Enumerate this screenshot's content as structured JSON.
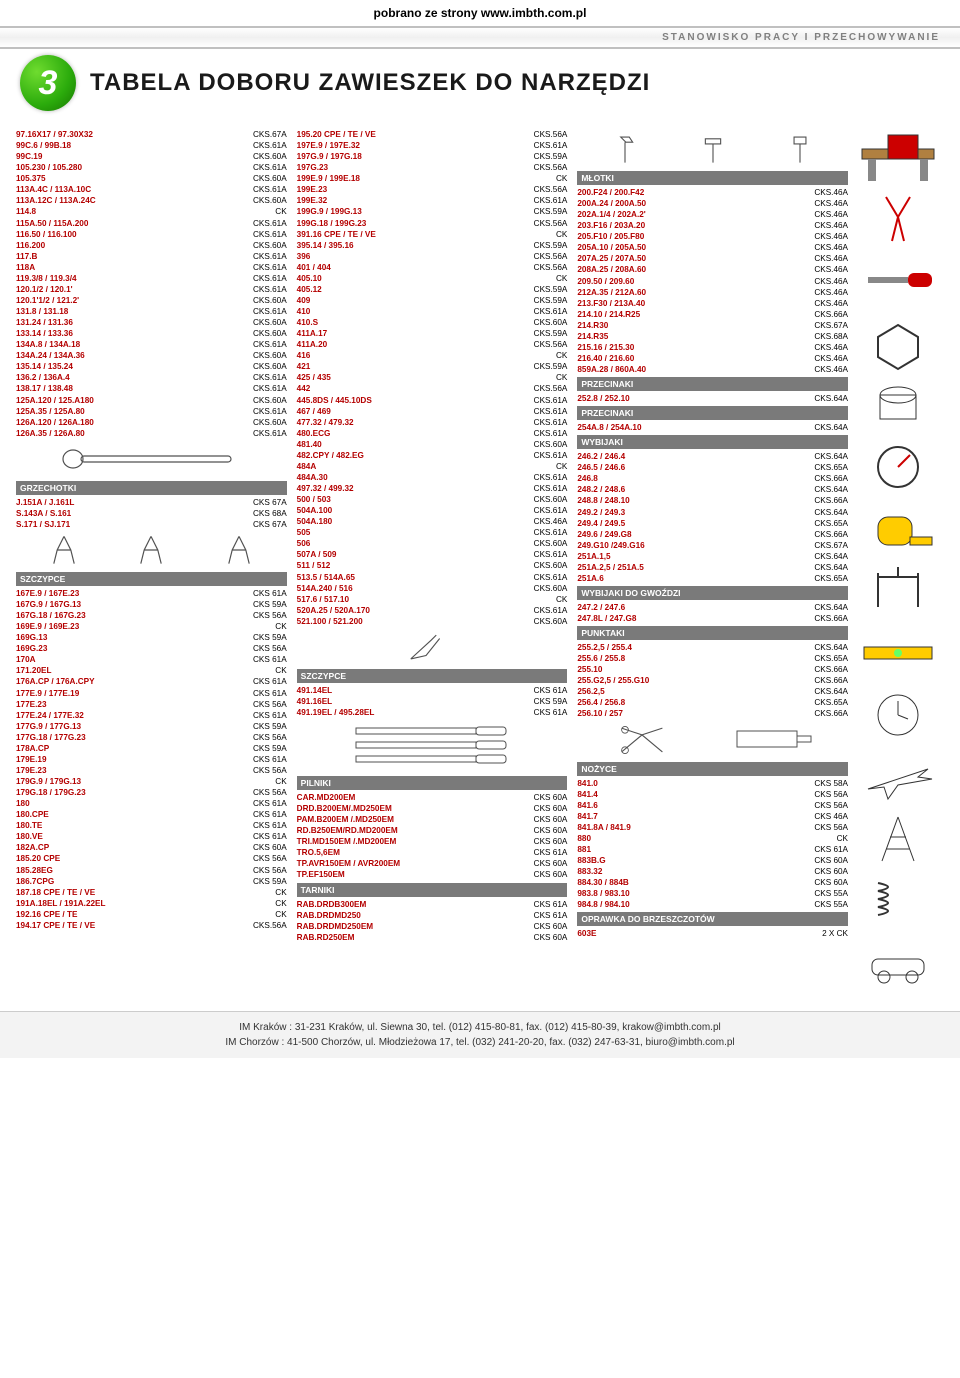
{
  "top_banner": "pobrano ze strony www.imbth.com.pl",
  "header_badge": "STANOWISKO PRACY I PRZECHOWYWANIE",
  "big_number": "3",
  "title": "TABELA DOBORU ZAWIESZEK DO NARZĘDZI",
  "col1": {
    "block1": [
      [
        "97.16X17 / 97.30X32",
        "CKS.67A"
      ],
      [
        "99C.6 / 99B.18",
        "CKS.61A"
      ],
      [
        "99C.19",
        "CKS.60A"
      ],
      [
        "105.230 / 105.280",
        "CKS.61A"
      ],
      [
        "105.375",
        "CKS.60A"
      ],
      [
        "113A.4C / 113A.10C",
        "CKS.61A"
      ],
      [
        "113A.12C / 113A.24C",
        "CKS.60A"
      ],
      [
        "114.8",
        "CK"
      ],
      [
        "115A.50 / 115A.200",
        "CKS.61A"
      ],
      [
        "116.50 / 116.100",
        "CKS.61A"
      ],
      [
        "116.200",
        "CKS.60A"
      ],
      [
        "117.B",
        "CKS.61A"
      ],
      [
        "118A",
        "CKS.61A"
      ],
      [
        "119.3/8 / 119.3/4",
        "CKS.61A"
      ],
      [
        "120.1/2 / 120.1'",
        "CKS.61A"
      ],
      [
        "120.1'1/2 / 121.2'",
        "CKS.60A"
      ],
      [
        "131.8 / 131.18",
        "CKS.61A"
      ],
      [
        "131.24 / 131.36",
        "CKS.60A"
      ],
      [
        "133.14 / 133.36",
        "CKS.60A"
      ],
      [
        "134A.8 / 134A.18",
        "CKS.61A"
      ],
      [
        "134A.24 / 134A.36",
        "CKS.60A"
      ],
      [
        "135.14 / 135.24",
        "CKS.60A"
      ],
      [
        "136.2 / 136A.4",
        "CKS.61A"
      ],
      [
        "138.17 / 138.48",
        "CKS.61A"
      ],
      [
        "125A.120 / 125.A180",
        "CKS.60A"
      ],
      [
        "125A.35 / 125A.80",
        "CKS.61A"
      ],
      [
        "126A.120 / 126A.180",
        "CKS.60A"
      ],
      [
        "126A.35 / 126A.80",
        "CKS.61A"
      ]
    ],
    "sec1": "GRZECHOTKI",
    "block2": [
      [
        "J.151A / J.161L",
        "CKS 67A"
      ],
      [
        "S.143A / S.161",
        "CKS 68A"
      ],
      [
        "S.171 / SJ.171",
        "CKS 67A"
      ]
    ],
    "sec2": "SZCZYPCE",
    "block3": [
      [
        "167E.9 / 167E.23",
        "CKS 61A"
      ],
      [
        "167G.9 / 167G.13",
        "CKS 59A"
      ],
      [
        "167G.18 / 167G.23",
        "CKS 56A"
      ],
      [
        "169E.9 / 169E.23",
        "CK"
      ],
      [
        "169G.13",
        "CKS 59A"
      ],
      [
        "169G.23",
        "CKS 56A"
      ],
      [
        "170A",
        "CKS 61A"
      ],
      [
        "171.20EL",
        "CK"
      ],
      [
        "176A.CP / 176A.CPY",
        "CKS 61A"
      ],
      [
        "177E.9 / 177E.19",
        "CKS 61A"
      ],
      [
        "177E.23",
        "CKS 56A"
      ],
      [
        "177E.24 / 177E.32",
        "CKS 61A"
      ],
      [
        "177G.9 / 177G.13",
        "CKS 59A"
      ],
      [
        "177G.18 / 177G.23",
        "CKS 56A"
      ],
      [
        "178A.CP",
        "CKS 59A"
      ],
      [
        "179E.19",
        "CKS 61A"
      ],
      [
        "179E.23",
        "CKS 56A"
      ],
      [
        "179G.9 / 179G.13",
        "CK"
      ],
      [
        "179G.18 / 179G.23",
        "CKS 56A"
      ],
      [
        "180",
        "CKS 61A"
      ],
      [
        "180.CPE",
        "CKS 61A"
      ],
      [
        "180.TE",
        "CKS 61A"
      ],
      [
        "180.VE",
        "CKS 61A"
      ],
      [
        "182A.CP",
        "CKS 60A"
      ],
      [
        "185.20 CPE",
        "CKS 56A"
      ],
      [
        "185.28EG",
        "CKS 56A"
      ],
      [
        "186.7CPG",
        "CKS 59A"
      ],
      [
        "187.18 CPE / TE / VE",
        "CK"
      ],
      [
        "191A.18EL / 191A.22EL",
        "CK"
      ],
      [
        "192.16 CPE / TE",
        "CK"
      ],
      [
        "194.17 CPE / TE / VE",
        "CKS.56A"
      ]
    ]
  },
  "col2": {
    "block1": [
      [
        "195.20 CPE / TE / VE",
        "CKS.56A"
      ],
      [
        "197E.9 / 197E.32",
        "CKS.61A"
      ],
      [
        "197G.9 / 197G.18",
        "CKS.59A"
      ],
      [
        "197G.23",
        "CKS.56A"
      ],
      [
        "199E.9 / 199E.18",
        "CK"
      ],
      [
        "199E.23",
        "CKS.56A"
      ],
      [
        "199E.32",
        "CKS.61A"
      ],
      [
        "199G.9 / 199G.13",
        "CKS.59A"
      ],
      [
        "199G.18 / 199G.23",
        "CKS.56A"
      ],
      [
        "391.16 CPE / TE / VE",
        "CK"
      ],
      [
        "395.14 / 395.16",
        "CKS.59A"
      ],
      [
        "396",
        "CKS.56A"
      ],
      [
        "401 / 404",
        "CKS.56A"
      ],
      [
        "405.10",
        "CK"
      ],
      [
        "405.12",
        "CKS.59A"
      ],
      [
        "409",
        "CKS.59A"
      ],
      [
        "410",
        "CKS.61A"
      ],
      [
        "410.S",
        "CKS.60A"
      ],
      [
        "411A.17",
        "CKS.59A"
      ],
      [
        "411A.20",
        "CKS.56A"
      ],
      [
        "416",
        "CK"
      ],
      [
        "421",
        "CKS.59A"
      ],
      [
        "425 / 435",
        "CK"
      ],
      [
        "442",
        "CKS.56A"
      ],
      [
        "445.8DS / 445.10DS",
        "CKS.61A"
      ],
      [
        "467 / 469",
        "CKS.61A"
      ],
      [
        "477.32 / 479.32",
        "CKS.61A"
      ],
      [
        "480.ECG",
        "CKS.61A"
      ],
      [
        "481.40",
        "CKS.60A"
      ],
      [
        "482.CPY / 482.EG",
        "CKS.61A"
      ],
      [
        "484A",
        "CK"
      ],
      [
        "484A.30",
        "CKS.61A"
      ],
      [
        "497.32 / 499.32",
        "CKS.61A"
      ],
      [
        "500 / 503",
        "CKS.60A"
      ],
      [
        "504A.100",
        "CKS.61A"
      ],
      [
        "504A.180",
        "CKS.46A"
      ],
      [
        "505",
        "CKS.61A"
      ],
      [
        "506",
        "CKS.60A"
      ],
      [
        "507A / 509",
        "CKS.61A"
      ],
      [
        "511 / 512",
        "CKS.60A"
      ],
      [
        "513.5 / 514A.65",
        "CKS.61A"
      ],
      [
        "514A.240 / 516",
        "CKS.60A"
      ],
      [
        "517.6 / 517.10",
        "CK"
      ],
      [
        "520A.25 / 520A.170",
        "CKS.61A"
      ],
      [
        "521.100 / 521.200",
        "CKS.60A"
      ]
    ],
    "sec1": "SZCZYPCE",
    "block2": [
      [
        "491.14EL",
        "CKS 61A"
      ],
      [
        "491.16EL",
        "CKS 59A"
      ],
      [
        "491.19EL / 495.28EL",
        "CKS 61A"
      ]
    ],
    "sec2": "PILNIKI",
    "block3": [
      [
        "CAR.MD200EM",
        "CKS 60A"
      ],
      [
        "DRD.B200EM/.MD250EM",
        "CKS 60A"
      ],
      [
        "PAM.B200EM /.MD250EM",
        "CKS 60A"
      ],
      [
        "RD.B250EM/RD.MD200EM",
        "CKS 60A"
      ],
      [
        "TRI.MD150EM /.MD200EM",
        "CKS 60A"
      ],
      [
        "TRO.5,6EM",
        "CKS 61A"
      ],
      [
        "TP.AVR150EM / AVR200EM",
        "CKS 60A"
      ],
      [
        "TP.EF150EM",
        "CKS 60A"
      ]
    ],
    "sec3": "TARNIKI",
    "block4": [
      [
        "RAB.DRDB300EM",
        "CKS 61A"
      ],
      [
        "RAB.DRDMD250",
        "CKS 61A"
      ],
      [
        "RAB.DRDMD250EM",
        "CKS 60A"
      ],
      [
        "RAB.RD250EM",
        "CKS 60A"
      ]
    ]
  },
  "col3": {
    "sec1": "MŁOTKI",
    "block1": [
      [
        "200.F24 / 200.F42",
        "CKS.46A"
      ],
      [
        "200A.24 / 200A.50",
        "CKS.46A"
      ],
      [
        "202A.1/4 / 202A.2'",
        "CKS.46A"
      ],
      [
        "203.F16 / 203A.20",
        "CKS.46A"
      ],
      [
        "205.F10 / 205.F80",
        "CKS.46A"
      ],
      [
        "205A.10 / 205A.50",
        "CKS.46A"
      ],
      [
        "207A.25 / 207A.50",
        "CKS.46A"
      ],
      [
        "208A.25 / 208A.60",
        "CKS.46A"
      ],
      [
        "209.50 / 209.60",
        "CKS.46A"
      ],
      [
        "212A.35 / 212A.60",
        "CKS.46A"
      ],
      [
        "213.F30 / 213A.40",
        "CKS.46A"
      ],
      [
        "214.10 / 214.R25",
        "CKS.66A"
      ],
      [
        "214.R30",
        "CKS.67A"
      ],
      [
        "214.R35",
        "CKS.68A"
      ],
      [
        "215.16 / 215.30",
        "CKS.46A"
      ],
      [
        "216.40 / 216.60",
        "CKS.46A"
      ],
      [
        "859A.28 / 860A.40",
        "CKS.46A"
      ]
    ],
    "sec2": "PRZECINAKI",
    "block2": [
      [
        "252.8 / 252.10",
        "CKS.64A"
      ]
    ],
    "sec3": "PRZECINAKI",
    "block3": [
      [
        "254A.8 / 254A.10",
        "CKS.64A"
      ]
    ],
    "sec4": "WYBIJAKI",
    "block4": [
      [
        "246.2 / 246.4",
        "CKS.64A"
      ],
      [
        "246.5 / 246.6",
        "CKS.65A"
      ],
      [
        "246.8",
        "CKS.66A"
      ],
      [
        "248.2 / 248.6",
        "CKS.64A"
      ],
      [
        "248.8 / 248.10",
        "CKS.66A"
      ],
      [
        "249.2 / 249.3",
        "CKS.64A"
      ],
      [
        "249.4 / 249.5",
        "CKS.65A"
      ],
      [
        "249.6 / 249.G8",
        "CKS.66A"
      ],
      [
        "249.G10 /249.G16",
        "CKS.67A"
      ],
      [
        "251A.1,5",
        "CKS.64A"
      ],
      [
        "251A.2,5 / 251A.5",
        "CKS.64A"
      ],
      [
        "251A.6",
        "CKS.65A"
      ]
    ],
    "sec5": "WYBIJAKI DO GWOŹDZI",
    "block5": [
      [
        "247.2 / 247.6",
        "CKS.64A"
      ],
      [
        "247.8L / 247.G8",
        "CKS.66A"
      ]
    ],
    "sec6": "PUNKTAKI",
    "block6": [
      [
        "255.2,5 / 255.4",
        "CKS.64A"
      ],
      [
        "255.6 / 255.8",
        "CKS.65A"
      ],
      [
        "255.10",
        "CKS.66A"
      ],
      [
        "255.G2,5 / 255.G10",
        "CKS.66A"
      ],
      [
        "256.2,5",
        "CKS.64A"
      ],
      [
        "256.4 / 256.8",
        "CKS.65A"
      ],
      [
        "256.10 / 257",
        "CKS.66A"
      ]
    ],
    "sec7": "NOŻYCE",
    "block7": [
      [
        "841.0",
        "CKS 58A"
      ],
      [
        "841.4",
        "CKS 56A"
      ],
      [
        "841.6",
        "CKS 56A"
      ],
      [
        "841.7",
        "CKS 46A"
      ],
      [
        "841.8A / 841.9",
        "CKS 56A"
      ],
      [
        "880",
        "CK"
      ],
      [
        "881",
        "CKS 61A"
      ],
      [
        "883B.G",
        "CKS 60A"
      ],
      [
        "883.32",
        "CKS 60A"
      ],
      [
        "884.30 / 884B",
        "CKS 60A"
      ],
      [
        "983.8 / 983.10",
        "CKS 55A"
      ],
      [
        "984.8 / 984.10",
        "CKS 55A"
      ]
    ],
    "sec8": "OPRAWKA DO BRZESZCZOTÓW",
    "block8": [
      [
        "603E",
        "2 X CK"
      ]
    ]
  },
  "footer": {
    "line1": "IM Kraków : 31-231 Kraków, ul. Siewna 30, tel. (012) 415-80-81, fax. (012) 415-80-39, krakow@imbth.com.pl",
    "line2": "IM Chorzów : 41-500 Chorzów, ul. Młodzieżowa 17, tel. (032) 241-20-20, fax. (032) 247-63-31, biuro@imbth.com.pl"
  }
}
